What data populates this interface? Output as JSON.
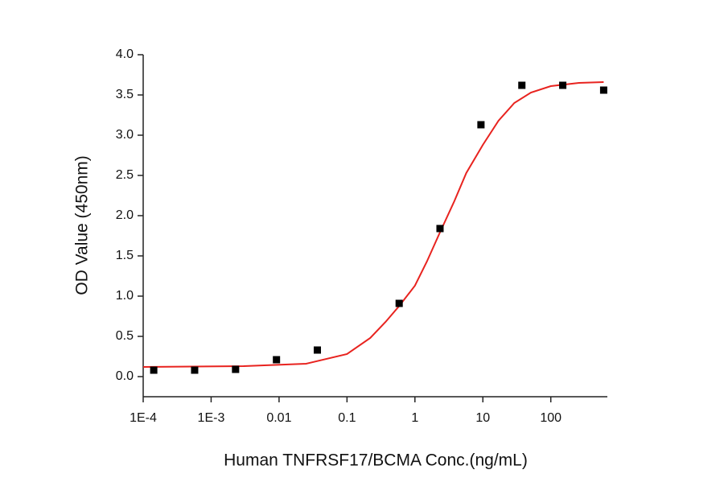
{
  "chart_data": {
    "type": "scatter",
    "x_label": "Human TNFRSF17/BCMA  Conc.(ng/mL)",
    "y_label": "OD Value (450nm)",
    "xscale": "log",
    "xlim": [
      0.0001,
      680
    ],
    "ylim": [
      -0.25,
      4.0
    ],
    "xticks": [
      {
        "value": 0.0001,
        "label": "1E-4"
      },
      {
        "value": 0.001,
        "label": "1E-3"
      },
      0.01,
      0.1,
      1,
      10,
      100
    ],
    "yticks": [
      {
        "value": 0,
        "label": "0.0"
      },
      0.5,
      {
        "value": 1,
        "label": "1.0"
      },
      1.5,
      {
        "value": 2,
        "label": "2.0"
      },
      2.5,
      {
        "value": 3,
        "label": "3.0"
      },
      3.5,
      {
        "value": 4,
        "label": "4.0"
      }
    ],
    "series": [
      {
        "type": "scatter",
        "color": "#000000",
        "marker": "square",
        "x": [
          0.000143,
          0.000572,
          0.00229,
          0.00916,
          0.0366,
          0.586,
          2.34,
          9.375,
          37.5,
          150,
          600
        ],
        "values": [
          0.08,
          0.08,
          0.09,
          0.21,
          0.33,
          0.91,
          1.84,
          3.13,
          3.62,
          3.62,
          3.56
        ]
      },
      {
        "type": "line",
        "color": "#e8231f",
        "x": [
          0.0001,
          0.003,
          0.025,
          0.1,
          0.22,
          0.37,
          0.59,
          1,
          1.5,
          2.3,
          3.8,
          5.7,
          10,
          17,
          29,
          51,
          100,
          260,
          600
        ],
        "values": [
          0.12,
          0.13,
          0.16,
          0.28,
          0.48,
          0.68,
          0.88,
          1.13,
          1.43,
          1.78,
          2.18,
          2.53,
          2.88,
          3.18,
          3.4,
          3.53,
          3.61,
          3.65,
          3.66
        ]
      }
    ]
  }
}
